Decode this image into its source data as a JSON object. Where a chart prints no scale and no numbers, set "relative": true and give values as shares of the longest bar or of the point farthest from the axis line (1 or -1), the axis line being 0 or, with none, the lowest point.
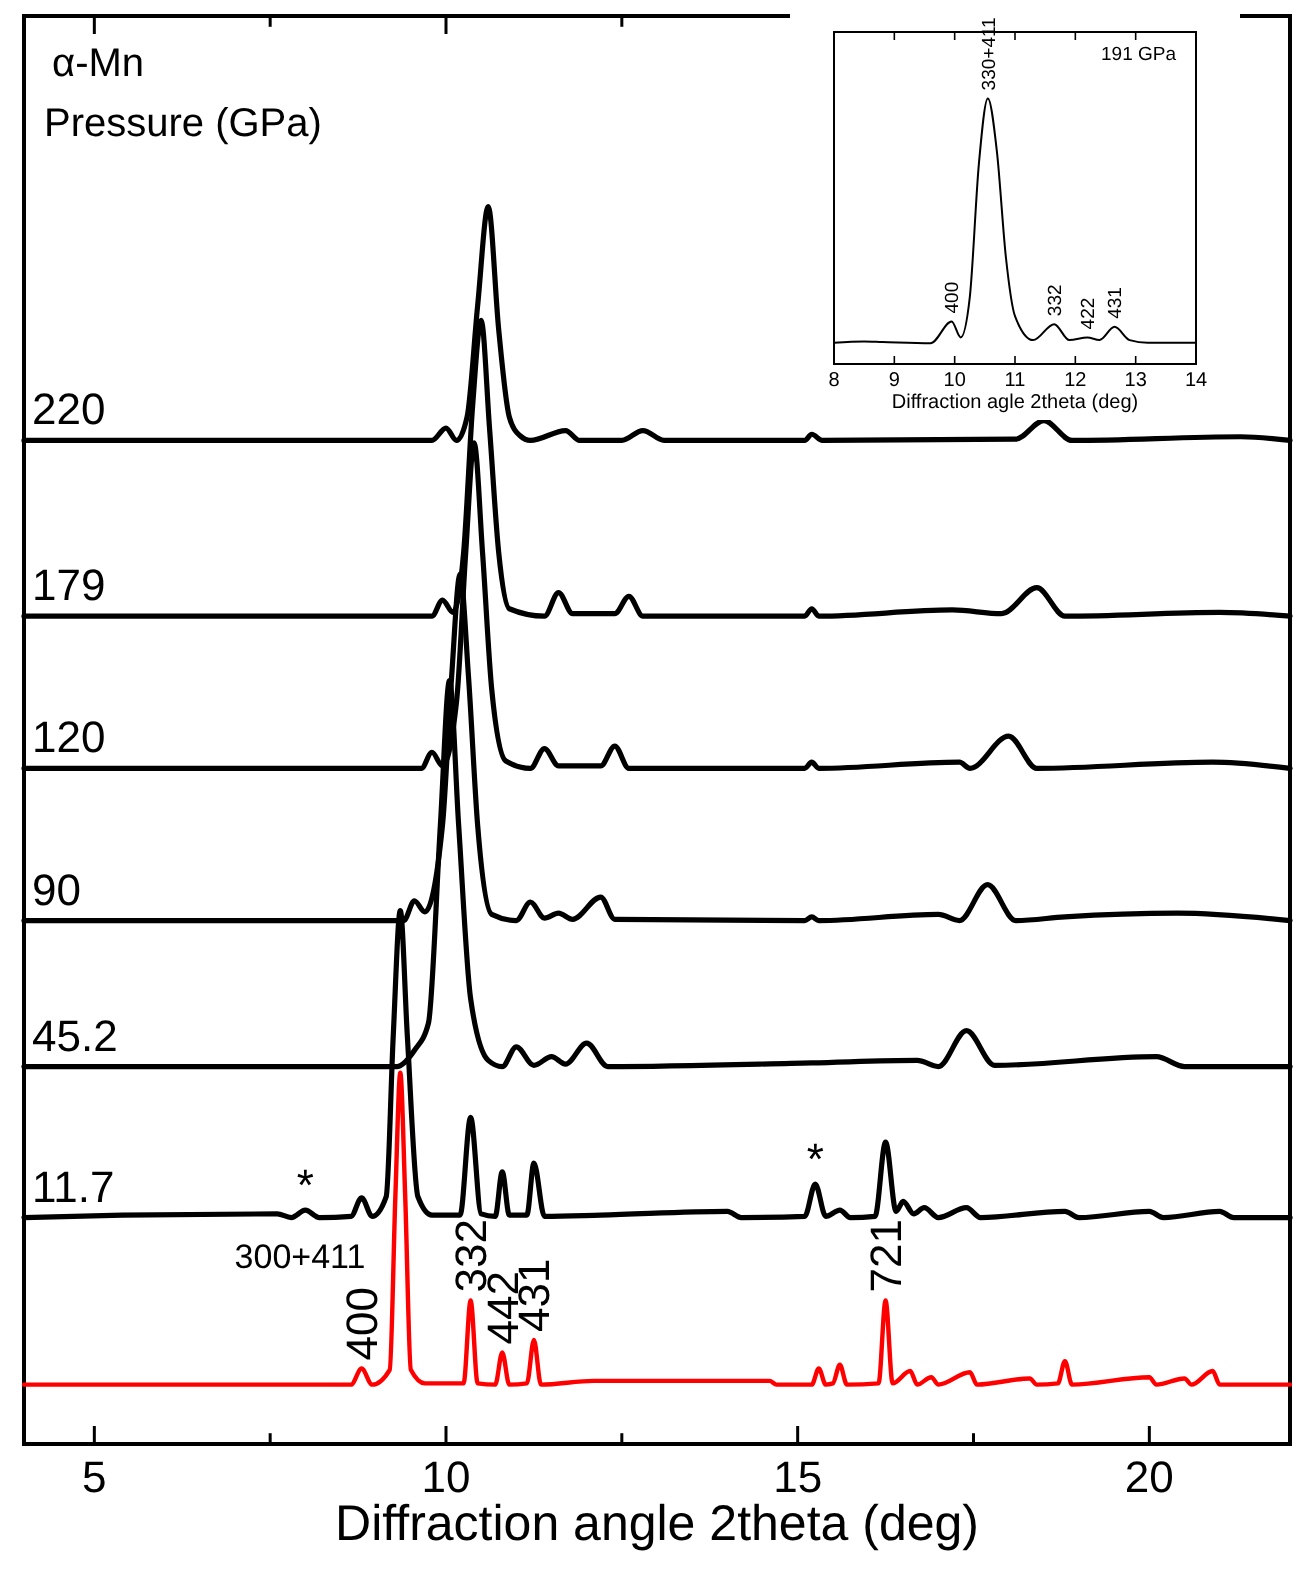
{
  "chart_data": [
    {
      "type": "line",
      "relative": true,
      "xlabel": "Diffraction angle 2theta (deg)",
      "xlim": [
        4,
        22
      ],
      "xticks": [
        5,
        {
          "value": 7.5,
          "label": null
        },
        10,
        {
          "value": 12.5,
          "label": null
        },
        15,
        {
          "value": 17.5,
          "label": null
        },
        20
      ],
      "line_style": "solid",
      "marker": "none",
      "annotations": [
        "α-Mn",
        "Pressure (GPa)",
        "300+411",
        {
          "text": "*",
          "x": 8.0,
          "y": 0.189
        },
        {
          "text": "*",
          "x": 15.25,
          "y": 0.21
        },
        {
          "text": "400",
          "x": 8.8,
          "y": 0.061
        },
        {
          "text": "332",
          "x": 10.35,
          "y": 0.116
        },
        {
          "text": "442",
          "x": 10.8,
          "y": 0.074
        },
        {
          "text": "431",
          "x": 11.25,
          "y": 0.084
        },
        {
          "text": "721",
          "x": 16.25,
          "y": 0.116
        }
      ],
      "series": [
        {
          "name": "220",
          "color": "#000000",
          "x": [
            4,
            9.8,
            10.0,
            10.15,
            10.3,
            10.45,
            10.6,
            10.75,
            10.9,
            11.05,
            11.2,
            11.7,
            11.9,
            12.5,
            12.8,
            13.1,
            15.1,
            15.2,
            15.35,
            18.1,
            18.5,
            18.9,
            21.3,
            22
          ],
          "values": [
            0.811,
            0.811,
            0.821,
            0.811,
            0.83,
            0.92,
            1.0,
            0.9,
            0.83,
            0.815,
            0.811,
            0.819,
            0.811,
            0.811,
            0.819,
            0.811,
            0.811,
            0.816,
            0.811,
            0.812,
            0.827,
            0.811,
            0.814,
            0.811
          ]
        },
        {
          "name": "179",
          "color": "#000000",
          "x": [
            4,
            9.8,
            9.95,
            10.1,
            10.25,
            10.38,
            10.5,
            10.62,
            10.75,
            10.9,
            11.4,
            11.6,
            11.8,
            12.4,
            12.6,
            12.8,
            15.1,
            15.2,
            15.3,
            17.2,
            17.9,
            18.4,
            18.8,
            21,
            22
          ],
          "values": [
            0.669,
            0.669,
            0.682,
            0.672,
            0.72,
            0.84,
            0.908,
            0.82,
            0.72,
            0.675,
            0.669,
            0.688,
            0.671,
            0.671,
            0.685,
            0.669,
            0.669,
            0.675,
            0.669,
            0.674,
            0.671,
            0.692,
            0.669,
            0.672,
            0.669
          ]
        },
        {
          "name": "120",
          "color": "#000000",
          "x": [
            4,
            9.65,
            9.8,
            9.95,
            10.15,
            10.28,
            10.4,
            10.52,
            10.65,
            10.85,
            11.2,
            11.4,
            11.6,
            12.2,
            12.4,
            12.6,
            15.1,
            15.2,
            15.3,
            17.3,
            17.45,
            18.0,
            18.4,
            20.9,
            22
          ],
          "values": [
            0.546,
            0.546,
            0.559,
            0.548,
            0.6,
            0.72,
            0.809,
            0.72,
            0.61,
            0.552,
            0.546,
            0.562,
            0.548,
            0.548,
            0.564,
            0.546,
            0.546,
            0.551,
            0.546,
            0.551,
            0.546,
            0.572,
            0.546,
            0.551,
            0.546
          ]
        },
        {
          "name": "90",
          "color": "#000000",
          "x": [
            4,
            9.4,
            9.55,
            9.7,
            9.95,
            10.08,
            10.2,
            10.32,
            10.45,
            10.65,
            11.0,
            11.2,
            11.4,
            11.6,
            11.8,
            12.2,
            12.4,
            15.1,
            15.2,
            15.3,
            17.0,
            17.3,
            17.7,
            18.1,
            18.8,
            20.4,
            22
          ],
          "values": [
            0.423,
            0.423,
            0.439,
            0.43,
            0.5,
            0.62,
            0.703,
            0.62,
            0.5,
            0.428,
            0.423,
            0.438,
            0.425,
            0.429,
            0.424,
            0.442,
            0.424,
            0.423,
            0.426,
            0.423,
            0.428,
            0.423,
            0.452,
            0.423,
            0.426,
            0.429,
            0.423
          ]
        },
        {
          "name": "45.2",
          "color": "#000000",
          "x": [
            4,
            9.3,
            9.55,
            9.75,
            9.92,
            10.05,
            10.18,
            10.35,
            10.6,
            10.8,
            11.0,
            11.25,
            11.5,
            11.7,
            12.0,
            12.3,
            15.2,
            16.7,
            17.0,
            17.4,
            17.8,
            20.1,
            20.5,
            22
          ],
          "values": [
            0.305,
            0.305,
            0.318,
            0.34,
            0.5,
            0.617,
            0.5,
            0.36,
            0.31,
            0.305,
            0.321,
            0.306,
            0.313,
            0.307,
            0.324,
            0.305,
            0.308,
            0.31,
            0.305,
            0.334,
            0.306,
            0.313,
            0.305,
            0.305
          ]
        },
        {
          "name": "11.7",
          "color": "#000000",
          "x": [
            4,
            5.4,
            7.6,
            7.8,
            8.0,
            8.2,
            8.65,
            8.8,
            8.95,
            9.15,
            9.25,
            9.35,
            9.45,
            9.6,
            9.8,
            10.2,
            10.35,
            10.5,
            10.7,
            10.8,
            10.9,
            11.15,
            11.25,
            11.4,
            12.2,
            14.0,
            14.2,
            15.1,
            15.25,
            15.4,
            15.6,
            15.75,
            16.1,
            16.25,
            16.4,
            16.5,
            16.65,
            16.8,
            17.0,
            17.4,
            17.6,
            18.8,
            19.0,
            20.0,
            20.2,
            21.0,
            21.2,
            22
          ],
          "values": [
            0.183,
            0.185,
            0.186,
            0.183,
            0.189,
            0.183,
            0.184,
            0.199,
            0.184,
            0.2,
            0.33,
            0.431,
            0.33,
            0.2,
            0.185,
            0.185,
            0.264,
            0.186,
            0.184,
            0.22,
            0.185,
            0.185,
            0.227,
            0.184,
            0.185,
            0.188,
            0.183,
            0.184,
            0.21,
            0.184,
            0.189,
            0.183,
            0.184,
            0.244,
            0.188,
            0.196,
            0.186,
            0.191,
            0.183,
            0.191,
            0.183,
            0.188,
            0.183,
            0.188,
            0.183,
            0.188,
            0.183,
            0.183
          ]
        },
        {
          "color": "#ff0000",
          "x": [
            4,
            8.65,
            8.8,
            8.95,
            9.2,
            9.28,
            9.35,
            9.42,
            9.5,
            9.7,
            10.25,
            10.35,
            10.45,
            10.7,
            10.8,
            10.9,
            11.15,
            11.25,
            11.35,
            12.1,
            13.6,
            14.6,
            14.7,
            15.2,
            15.3,
            15.4,
            15.5,
            15.6,
            15.7,
            16.15,
            16.25,
            16.35,
            16.6,
            16.7,
            16.9,
            17.0,
            17.45,
            17.55,
            18.3,
            18.4,
            18.7,
            18.8,
            18.9,
            20.0,
            20.1,
            20.5,
            20.6,
            20.9,
            21.0,
            22
          ],
          "values": [
            0.048,
            0.048,
            0.061,
            0.048,
            0.06,
            0.2,
            0.3,
            0.2,
            0.06,
            0.049,
            0.049,
            0.116,
            0.049,
            0.048,
            0.074,
            0.048,
            0.049,
            0.084,
            0.048,
            0.051,
            0.051,
            0.051,
            0.048,
            0.048,
            0.061,
            0.048,
            0.049,
            0.064,
            0.048,
            0.049,
            0.116,
            0.049,
            0.059,
            0.048,
            0.054,
            0.048,
            0.058,
            0.048,
            0.053,
            0.048,
            0.049,
            0.067,
            0.048,
            0.054,
            0.048,
            0.053,
            0.048,
            0.059,
            0.048,
            0.048
          ]
        }
      ]
    },
    {
      "type": "line",
      "relative": true,
      "xlabel": "Diffraction agle 2theta (deg)",
      "xlim": [
        8,
        14
      ],
      "xticks": [
        8,
        9,
        10,
        11,
        12,
        13,
        14
      ],
      "line_style": "solid",
      "marker": "none",
      "annotations": [
        "191 GPa",
        {
          "text": "400",
          "x": 9.95,
          "y": 0.16
        },
        {
          "text": "330+411",
          "x": 10.55,
          "y": 1.0
        },
        {
          "text": "332",
          "x": 11.65,
          "y": 0.15
        },
        {
          "text": "422",
          "x": 12.2,
          "y": 0.1
        },
        {
          "text": "431",
          "x": 12.65,
          "y": 0.14
        }
      ],
      "series": [
        {
          "color": "#000000",
          "x": [
            8,
            8.5,
            8.8,
            9.6,
            9.95,
            10.1,
            10.25,
            10.4,
            10.55,
            10.7,
            10.85,
            11.0,
            11.3,
            11.65,
            11.9,
            12.2,
            12.4,
            12.65,
            12.9,
            13.2,
            14
          ],
          "values": [
            0.08,
            0.085,
            0.083,
            0.078,
            0.16,
            0.1,
            0.25,
            0.75,
            1.0,
            0.8,
            0.4,
            0.18,
            0.09,
            0.15,
            0.09,
            0.1,
            0.09,
            0.14,
            0.09,
            0.08,
            0.08
          ]
        }
      ]
    }
  ]
}
